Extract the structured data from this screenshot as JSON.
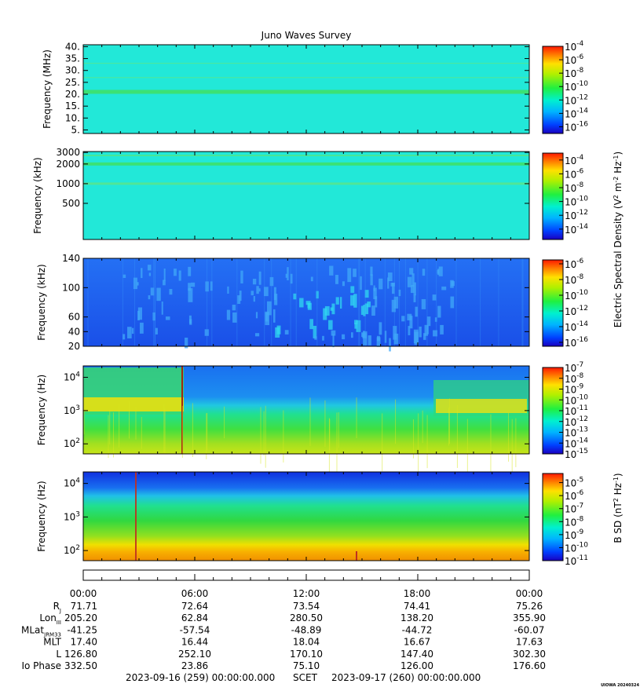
{
  "chart_data": {
    "type": "heatmap",
    "title": "Juno Waves Survey",
    "panels": [
      {
        "id": "hfr-high",
        "ylabel": "Frequency (MHz)",
        "yscale": "linear",
        "ylim": [
          3.5,
          40.8
        ],
        "yticks": [
          5,
          10,
          15,
          20,
          25,
          30,
          35,
          40
        ],
        "yticklabels": [
          "5.",
          "10.",
          "15.",
          "20.",
          "25.",
          "30.",
          "35.",
          "40."
        ],
        "colorbar_exponents": [
          -16,
          -14,
          -12,
          -10,
          -8,
          -6,
          -4
        ],
        "colorbar_range": [
          -17,
          -4
        ],
        "background": "#22e8d8",
        "bands": [
          {
            "y": 21,
            "color": "#3ee06a",
            "width": 5
          },
          {
            "y": 27,
            "color": "#55e890",
            "width": 1
          },
          {
            "y": 33,
            "color": "#55e890",
            "width": 1
          }
        ]
      },
      {
        "id": "hfr-low",
        "ylabel": "Frequency (kHz)",
        "yscale": "log",
        "ylim": [
          140,
          3100
        ],
        "yticks": [
          500,
          1000,
          2000,
          3000
        ],
        "yticklabels": [
          "500",
          "1000",
          "2000",
          "3000"
        ],
        "colorbar_exponents": [
          -14,
          -12,
          -10,
          -8,
          -6,
          -4
        ],
        "colorbar_range": [
          -15.5,
          -3
        ],
        "background": "#22e8d8",
        "bands": [
          {
            "y": 2000,
            "color": "#3ee06a",
            "width": 4
          },
          {
            "y": 2700,
            "color": "#4ee690",
            "width": 2
          },
          {
            "y": 1000,
            "color": "#55e690",
            "width": 3
          }
        ]
      },
      {
        "id": "lfr-high",
        "ylabel": "Frequency (kHz)",
        "yscale": "linear",
        "ylim": [
          20,
          140
        ],
        "yticks": [
          20,
          40,
          60,
          100,
          140
        ],
        "yticklabels": [
          "20",
          "40",
          "60",
          "100",
          "140"
        ],
        "colorbar_exponents": [
          -16,
          -14,
          -12,
          -10,
          -8,
          -6
        ],
        "colorbar_range": [
          -16.5,
          -5.5
        ],
        "background": "#1e63f0",
        "bands": []
      },
      {
        "id": "lfr-low",
        "ylabel": "Frequency (Hz)",
        "yscale": "log",
        "ylim": [
          50,
          22000
        ],
        "yticks": [
          100,
          1000,
          10000
        ],
        "yticklabels": [
          "10^2",
          "10^3",
          "10^4"
        ],
        "colorbar_exponents": [
          -15,
          -14,
          -13,
          -12,
          -11,
          -10,
          -9,
          -8,
          -7
        ],
        "colorbar_range": [
          -15,
          -7
        ],
        "background": "#1a8cf0",
        "bands": []
      },
      {
        "id": "mag",
        "ylabel": "Frequency (Hz)",
        "yscale": "log",
        "ylim": [
          50,
          22000
        ],
        "yticks": [
          100,
          1000,
          10000
        ],
        "yticklabels": [
          "10^2",
          "10^3",
          "10^4"
        ],
        "colorbar_exponents": [
          -11,
          -10,
          -9,
          -8,
          -7,
          -6,
          -5
        ],
        "colorbar_range": [
          -11,
          -4.3
        ],
        "background": "#22cc55",
        "bands": []
      }
    ],
    "colorbar_label_electric": "Electric Spectral Density (V^2 m^-2 Hz^-1)",
    "colorbar_label_magnetic": "B SD (nT^2 Hz^-1)",
    "x_ticks": [
      "00:00",
      "06:00",
      "12:00",
      "18:00",
      "00:00"
    ],
    "ephemeris": [
      {
        "label": "R",
        "sub": "J",
        "values": [
          "71.71",
          "72.64",
          "73.54",
          "74.41",
          "75.26"
        ]
      },
      {
        "label": "Lon",
        "sub": "III",
        "values": [
          "205.20",
          "62.84",
          "280.50",
          "138.20",
          "355.90"
        ]
      },
      {
        "label": "MLat",
        "sub": "JRM33",
        "values": [
          "-41.25",
          "-57.54",
          "-48.89",
          "-44.72",
          "-60.07"
        ]
      },
      {
        "label": "MLT",
        "sub": "",
        "values": [
          "17.40",
          "16.44",
          "18.04",
          "16.67",
          "17.63"
        ]
      },
      {
        "label": "L",
        "sub": "",
        "values": [
          "126.80",
          "252.10",
          "170.10",
          "147.40",
          "302.30"
        ]
      },
      {
        "label": "Io Phase",
        "sub": "",
        "values": [
          "332.50",
          "23.86",
          "75.10",
          "126.00",
          "176.60"
        ]
      }
    ],
    "time_start": "2023-09-16 (259) 00:00:00.000",
    "time_label": "SCET",
    "time_end": "2023-09-17 (260) 00:00:00.000",
    "footer_note": "UIOWA 20240324"
  }
}
